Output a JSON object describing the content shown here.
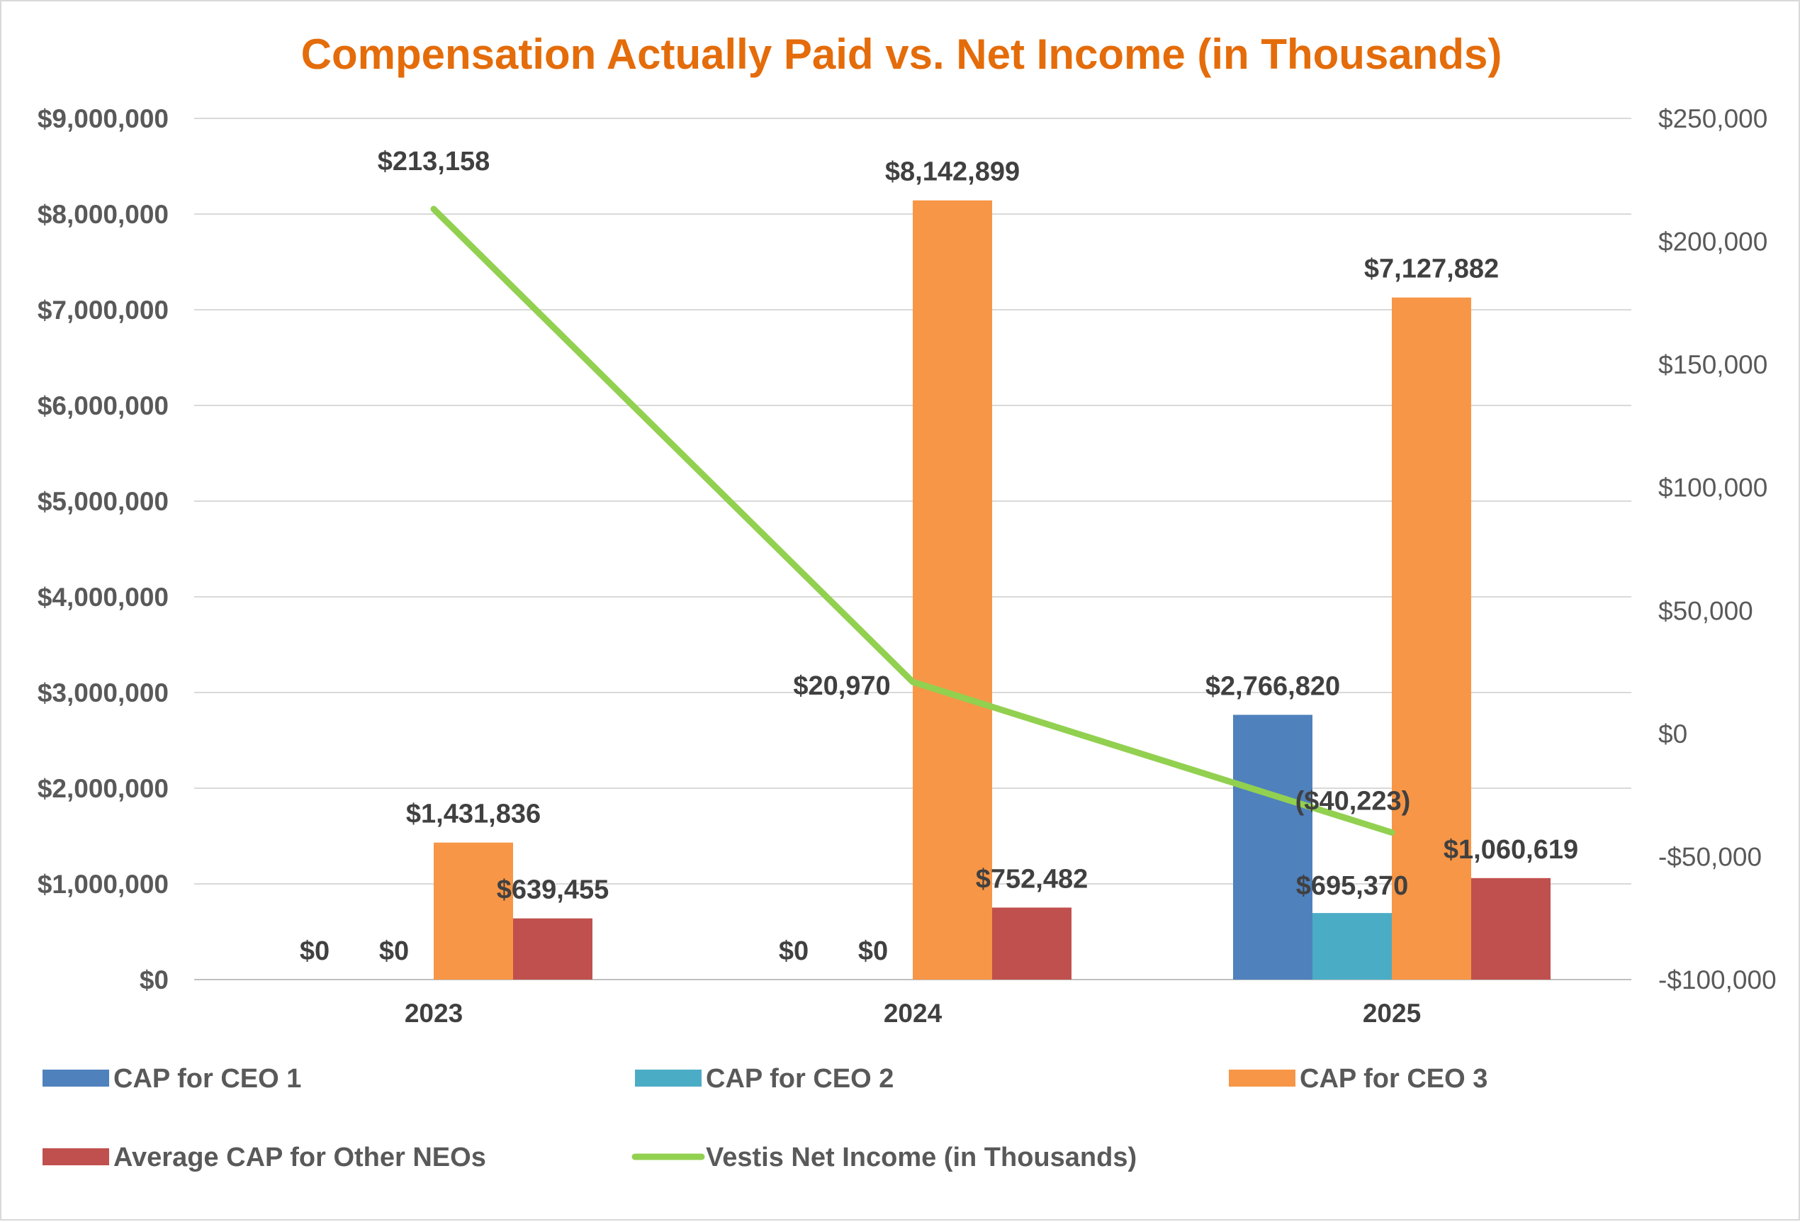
{
  "chart_data": {
    "type": "bar",
    "title": "Compensation Actually Paid vs. Net Income (in Thousands)",
    "title_color": "#E46C0A",
    "categories": [
      "2023",
      "2024",
      "2025"
    ],
    "y_left": {
      "lim": [
        0,
        9000000
      ],
      "ticks": [
        0,
        1000000,
        2000000,
        3000000,
        4000000,
        5000000,
        6000000,
        7000000,
        8000000,
        9000000
      ],
      "tick_labels": [
        "$0",
        "$1,000,000",
        "$2,000,000",
        "$3,000,000",
        "$4,000,000",
        "$5,000,000",
        "$6,000,000",
        "$7,000,000",
        "$8,000,000",
        "$9,000,000"
      ]
    },
    "y_right": {
      "lim": [
        -100000,
        250000
      ],
      "ticks": [
        -100000,
        -50000,
        0,
        50000,
        100000,
        150000,
        200000,
        250000
      ],
      "tick_labels": [
        "-$100,000",
        "-$50,000",
        "$0",
        "$50,000",
        "$100,000",
        "$150,000",
        "$200,000",
        "$250,000"
      ]
    },
    "series": [
      {
        "name": "CAP for CEO 1",
        "color": "#4F81BD",
        "values": [
          0,
          0,
          2766820
        ],
        "labels": [
          "$0",
          "$0",
          "$2,766,820"
        ]
      },
      {
        "name": "CAP for CEO 2",
        "color": "#4BACC6",
        "values": [
          0,
          0,
          695370
        ],
        "labels": [
          "$0",
          "$0",
          "$695,370"
        ]
      },
      {
        "name": "CAP for CEO 3",
        "color": "#F79646",
        "values": [
          1431836,
          8142899,
          7127882
        ],
        "labels": [
          "$1,431,836",
          "$8,142,899",
          "$7,127,882"
        ]
      },
      {
        "name": "Average CAP for Other NEOs",
        "color": "#C0504D",
        "values": [
          639455,
          752482,
          1060619
        ],
        "labels": [
          "$639,455",
          "$752,482",
          "$1,060,619"
        ]
      }
    ],
    "line_series": {
      "name": "Vestis Net Income (in Thousands)",
      "color": "#92D050",
      "axis": "right",
      "values": [
        213158,
        20970,
        -40223
      ],
      "labels": [
        "$213,158",
        "$20,970",
        "($40,223)"
      ]
    },
    "grid": true,
    "legend_position": "bottom"
  }
}
